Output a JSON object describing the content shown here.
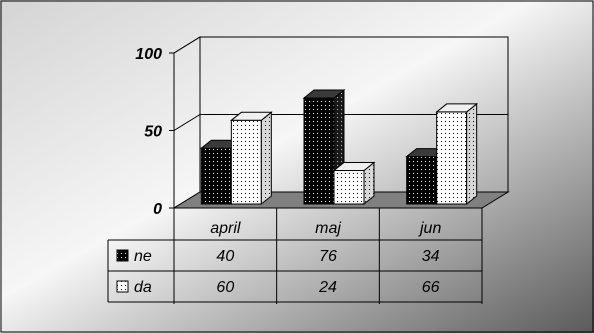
{
  "chart_data": {
    "type": "bar",
    "style": "3d-clustered-column-with-data-table",
    "categories": [
      "april",
      "maj",
      "jun"
    ],
    "series": [
      {
        "name": "ne",
        "values": [
          40,
          76,
          34
        ],
        "color": "#000000",
        "pattern": "dotted-dark"
      },
      {
        "name": "da",
        "values": [
          60,
          24,
          66
        ],
        "color": "#ffffff",
        "pattern": "dotted-light"
      }
    ],
    "yticks": [
      "0",
      "50",
      "100"
    ],
    "ylim": [
      0,
      100
    ],
    "grid": true,
    "legend": "data-table"
  },
  "colors": {
    "background_gradient": [
      "#cfcfcf",
      "#f4f4f4",
      "#5e5e5e"
    ],
    "floor": "#808080",
    "grid": "#000000"
  }
}
